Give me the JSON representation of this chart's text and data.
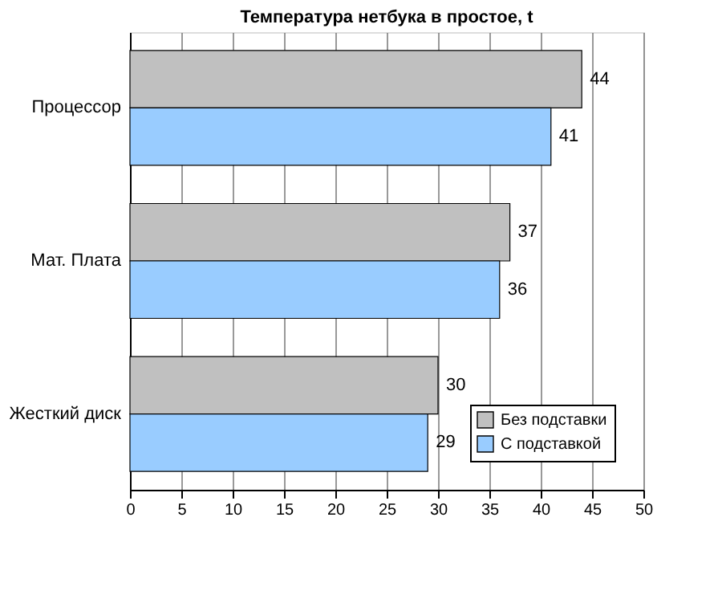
{
  "chart_data": {
    "type": "bar",
    "orientation": "horizontal",
    "title": "Температура нетбука в простое, t",
    "categories": [
      "Процессор",
      "Мат. Плата",
      "Жесткий диск"
    ],
    "series": [
      {
        "name": "Без подставки",
        "color": "#c0c0c0",
        "values": [
          44,
          37,
          30
        ]
      },
      {
        "name": "С подставкой",
        "color": "#99ccff",
        "values": [
          41,
          36,
          29
        ]
      }
    ],
    "xlim": [
      0,
      50
    ],
    "xticks": [
      0,
      5,
      10,
      15,
      20,
      25,
      30,
      35,
      40,
      45,
      50
    ],
    "grid": "x",
    "legend": "bottom right",
    "data_labels": true
  }
}
